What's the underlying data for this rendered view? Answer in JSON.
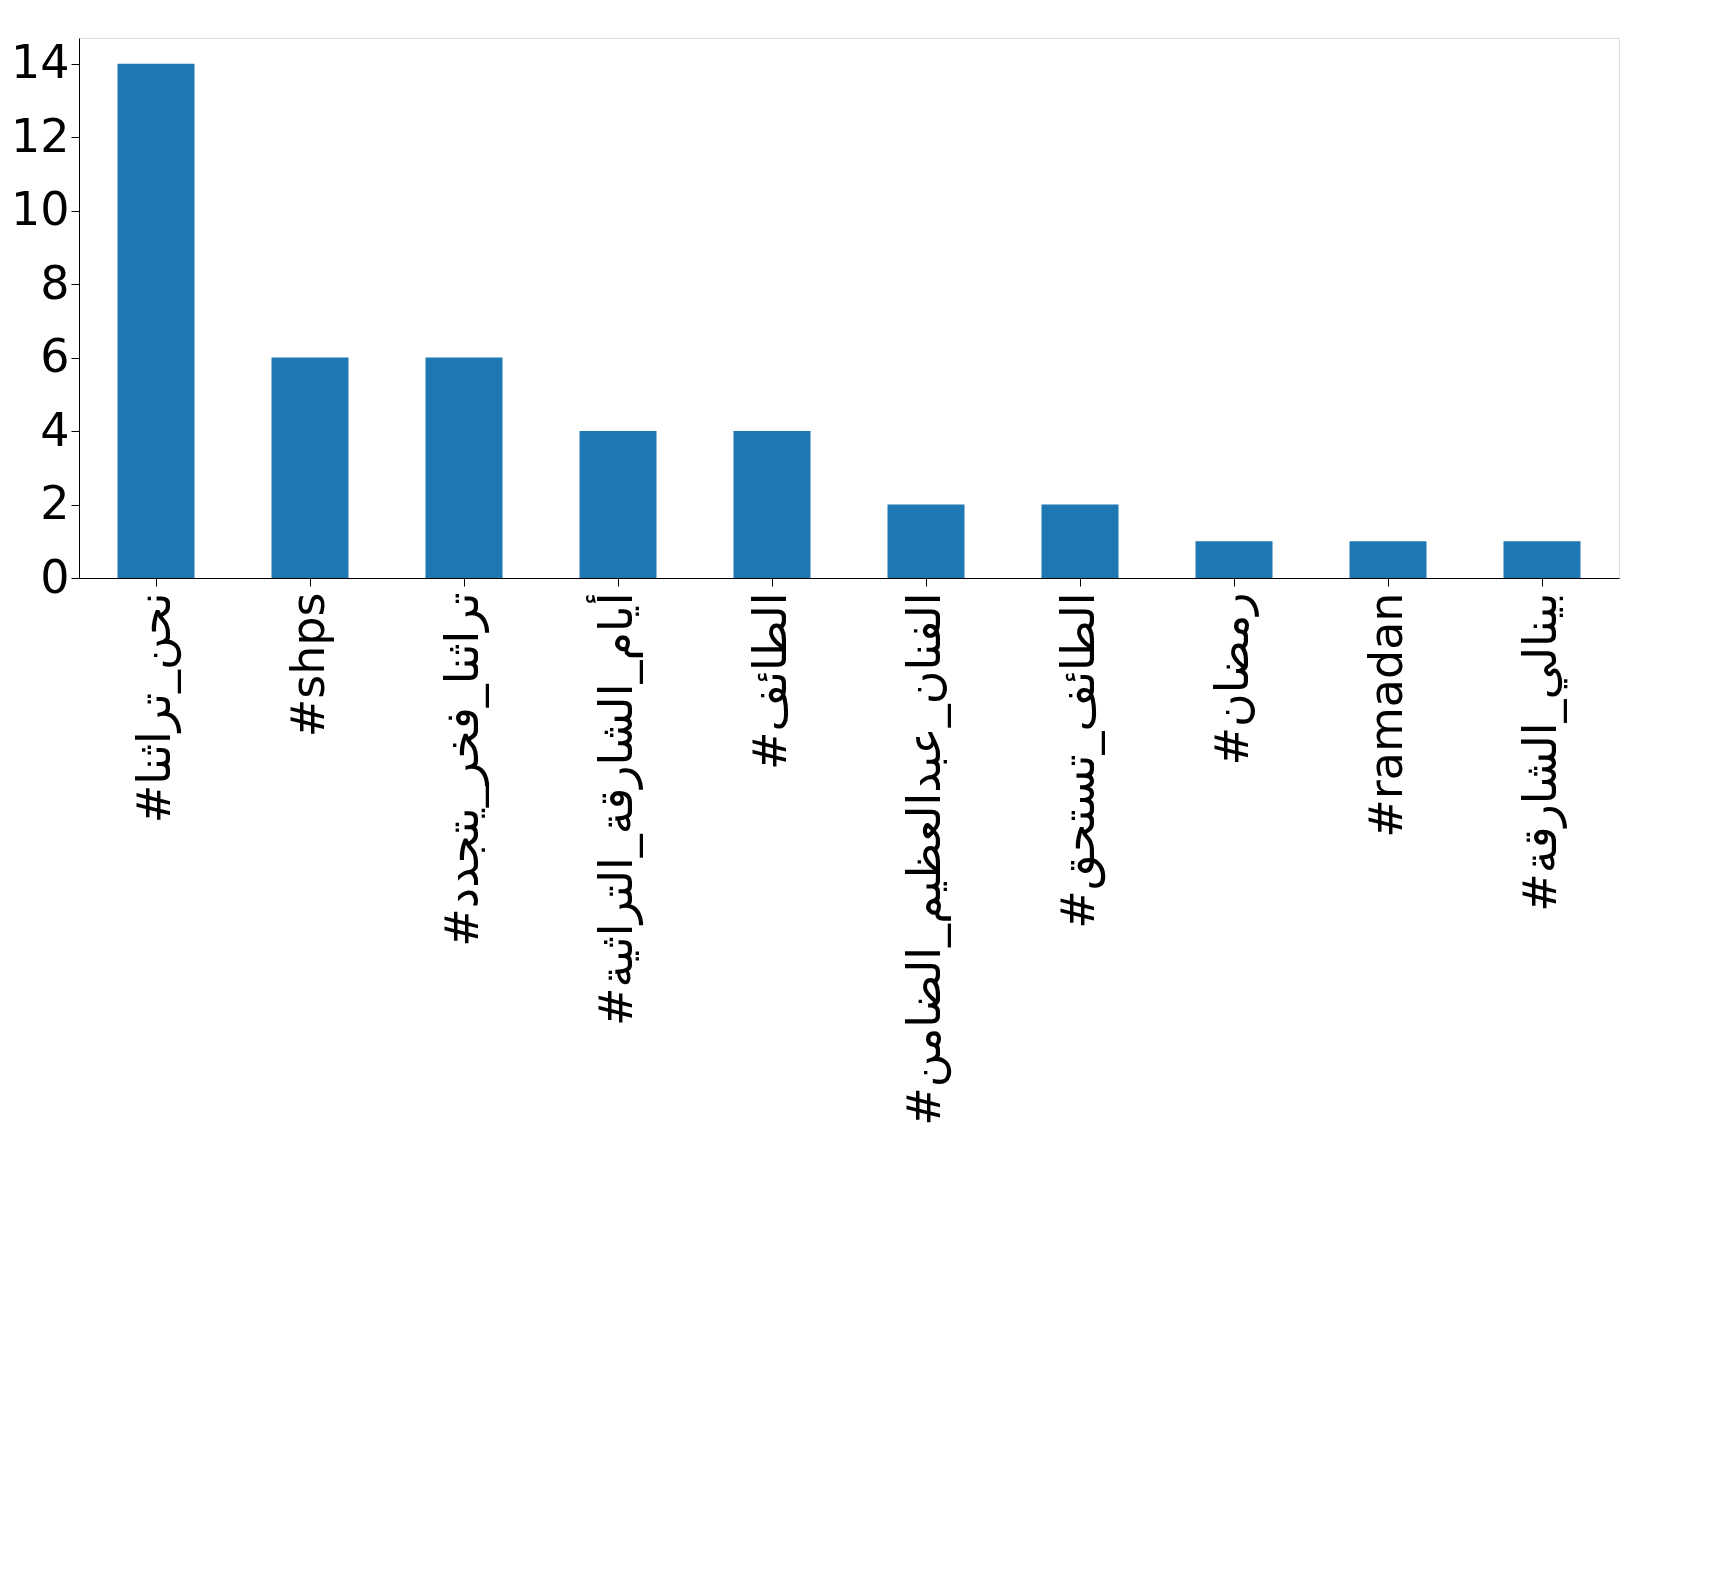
{
  "chart_data": {
    "type": "bar",
    "categories": [
      "#نحن_تراثنا",
      "#shps",
      "#تراثنا_فخر_يتجدد",
      "#أيام_الشارقة_التراثية",
      "#الطائف",
      "#الفنان_عبدالعظيم_الضامن",
      "#الطائف_تستحق",
      "#رمضان",
      "#ramadan",
      "#بينالي_الشارقة"
    ],
    "values": [
      14,
      6,
      6,
      4,
      4,
      2,
      2,
      1,
      1,
      1
    ],
    "color": "#1f77b4",
    "ylim": [
      0,
      14.7
    ],
    "yticks": [
      0,
      2,
      4,
      6,
      8,
      10,
      12,
      14
    ],
    "grid": false
  }
}
